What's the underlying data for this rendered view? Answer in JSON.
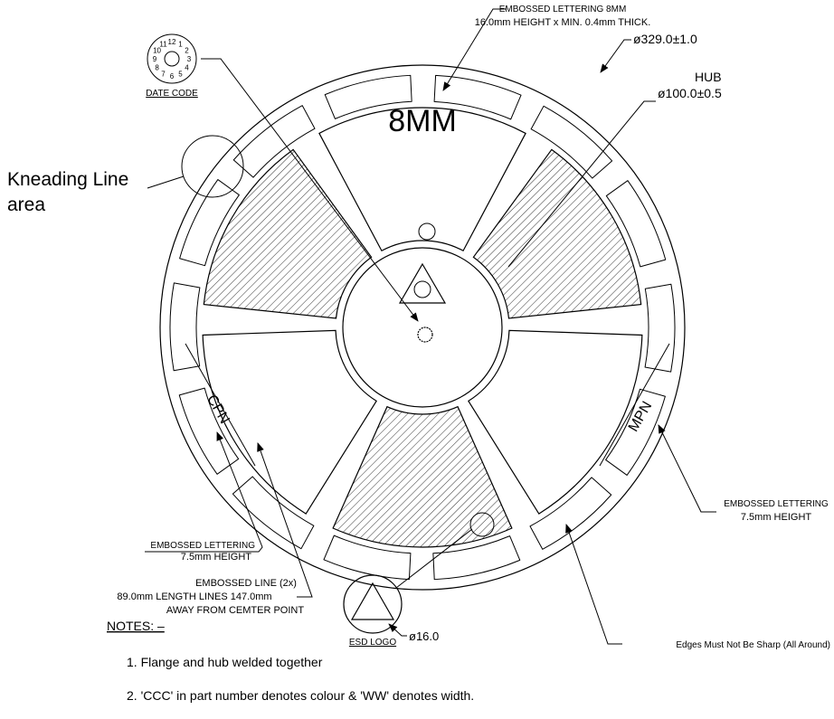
{
  "top_note": {
    "line1": "EMBOSSED LETTERING 8MM",
    "line2": "16.0mm HEIGHT x MIN. 0.4mm THICK."
  },
  "flange_diameter": "ø329.0±1.0",
  "hub": {
    "label": "HUB",
    "diameter": "ø100.0±0.5"
  },
  "width_marking": "8MM",
  "date_code": {
    "label": "DATE CODE",
    "numbers": [
      "1",
      "2",
      "3",
      "4",
      "5",
      "6",
      "7",
      "8",
      "9",
      "10",
      "11",
      "12"
    ]
  },
  "kneading": {
    "line1": "Kneading Line",
    "line2": "area"
  },
  "cpn": "CPN",
  "mpn": "MPN",
  "left_lettering": {
    "line1": "EMBOSSED LETTERING",
    "line2": "7.5mm HEIGHT"
  },
  "right_lettering": {
    "line1": "EMBOSSED LETTERING",
    "line2": "7.5mm HEIGHT"
  },
  "embossed_line": {
    "line1": "EMBOSSED LINE (2x)",
    "line2": "89.0mm LENGTH LINES 147.0mm",
    "line3": "AWAY FROM CEMTER POINT"
  },
  "esd_logo": {
    "label": "ESD LOGO",
    "diameter": "ø16.0"
  },
  "edges_note": "Edges Must Not Be Sharp (All Around)",
  "notes": {
    "title": "NOTES: –",
    "items": [
      "1. Flange and hub welded together",
      "2. 'CCC' in part number denotes colour & 'WW' denotes width."
    ]
  }
}
